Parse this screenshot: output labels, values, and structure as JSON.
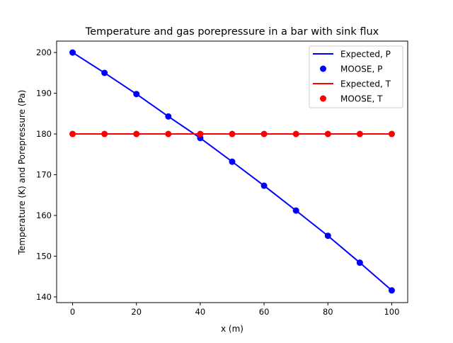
{
  "chart_data": {
    "type": "line",
    "title": "Temperature and gas porepressure in a bar with sink flux",
    "xlabel": "x (m)",
    "ylabel": "Temperature (K) and Porepressure (Pa)",
    "xlim": [
      -5,
      105
    ],
    "ylim": [
      138.6,
      202.8
    ],
    "xticks": [
      0,
      20,
      40,
      60,
      80,
      100
    ],
    "yticks": [
      140,
      150,
      160,
      170,
      180,
      190,
      200
    ],
    "grid": false,
    "legend_position": "top-right",
    "x": [
      0,
      10,
      20,
      30,
      40,
      50,
      60,
      70,
      80,
      90,
      100
    ],
    "series": [
      {
        "name": "Expected, P",
        "style": "line",
        "color": "#0000ff",
        "values": [
          200,
          195,
          189.8,
          184.3,
          179,
          173.2,
          167.3,
          161.2,
          155,
          148.4,
          141.6
        ]
      },
      {
        "name": "MOOSE, P",
        "style": "markers",
        "color": "#0000ff",
        "values": [
          200,
          195,
          189.8,
          184.3,
          179,
          173.2,
          167.3,
          161.2,
          155,
          148.4,
          141.6
        ]
      },
      {
        "name": "Expected, T",
        "style": "line",
        "color": "#ff0000",
        "values": [
          180,
          180,
          180,
          180,
          180,
          180,
          180,
          180,
          180,
          180,
          180
        ]
      },
      {
        "name": "MOOSE, T",
        "style": "markers",
        "color": "#ff0000",
        "values": [
          180,
          180,
          180,
          180,
          180,
          180,
          180,
          180,
          180,
          180,
          180
        ]
      }
    ]
  }
}
